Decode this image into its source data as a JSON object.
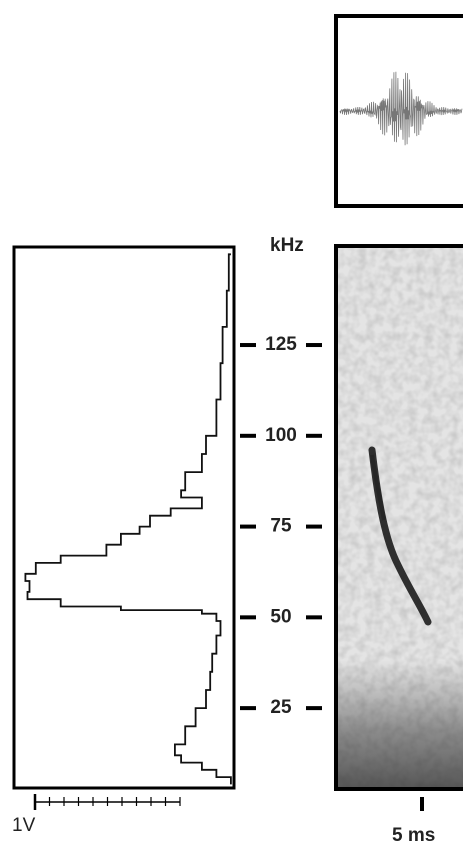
{
  "chart_data": {
    "type": "line",
    "y_unit_label": "kHz",
    "amplitude_scale_label": "1V",
    "time_scale_label": "5 ms",
    "ylim": [
      3,
      152
    ],
    "yticks": [
      25,
      50,
      75,
      100,
      125
    ],
    "xlim": [
      1.05,
      0
    ],
    "color": "#111111",
    "y": [
      150,
      140,
      130,
      120,
      110,
      100,
      95,
      90,
      85,
      83,
      80,
      78,
      75,
      73,
      70,
      67,
      65,
      62,
      60,
      57,
      55,
      53,
      52,
      51,
      49,
      45,
      40,
      35,
      30,
      25,
      20,
      15,
      12,
      10,
      8,
      6,
      4
    ],
    "values": [
      0.01,
      0.02,
      0.03,
      0.05,
      0.06,
      0.08,
      0.13,
      0.15,
      0.23,
      0.25,
      0.15,
      0.3,
      0.4,
      0.45,
      0.54,
      0.61,
      0.83,
      0.95,
      1.0,
      0.98,
      0.99,
      0.83,
      0.54,
      0.15,
      0.08,
      0.06,
      0.08,
      0.1,
      0.11,
      0.13,
      0.18,
      0.23,
      0.28,
      0.25,
      0.15,
      0.08,
      0.01
    ]
  }
}
